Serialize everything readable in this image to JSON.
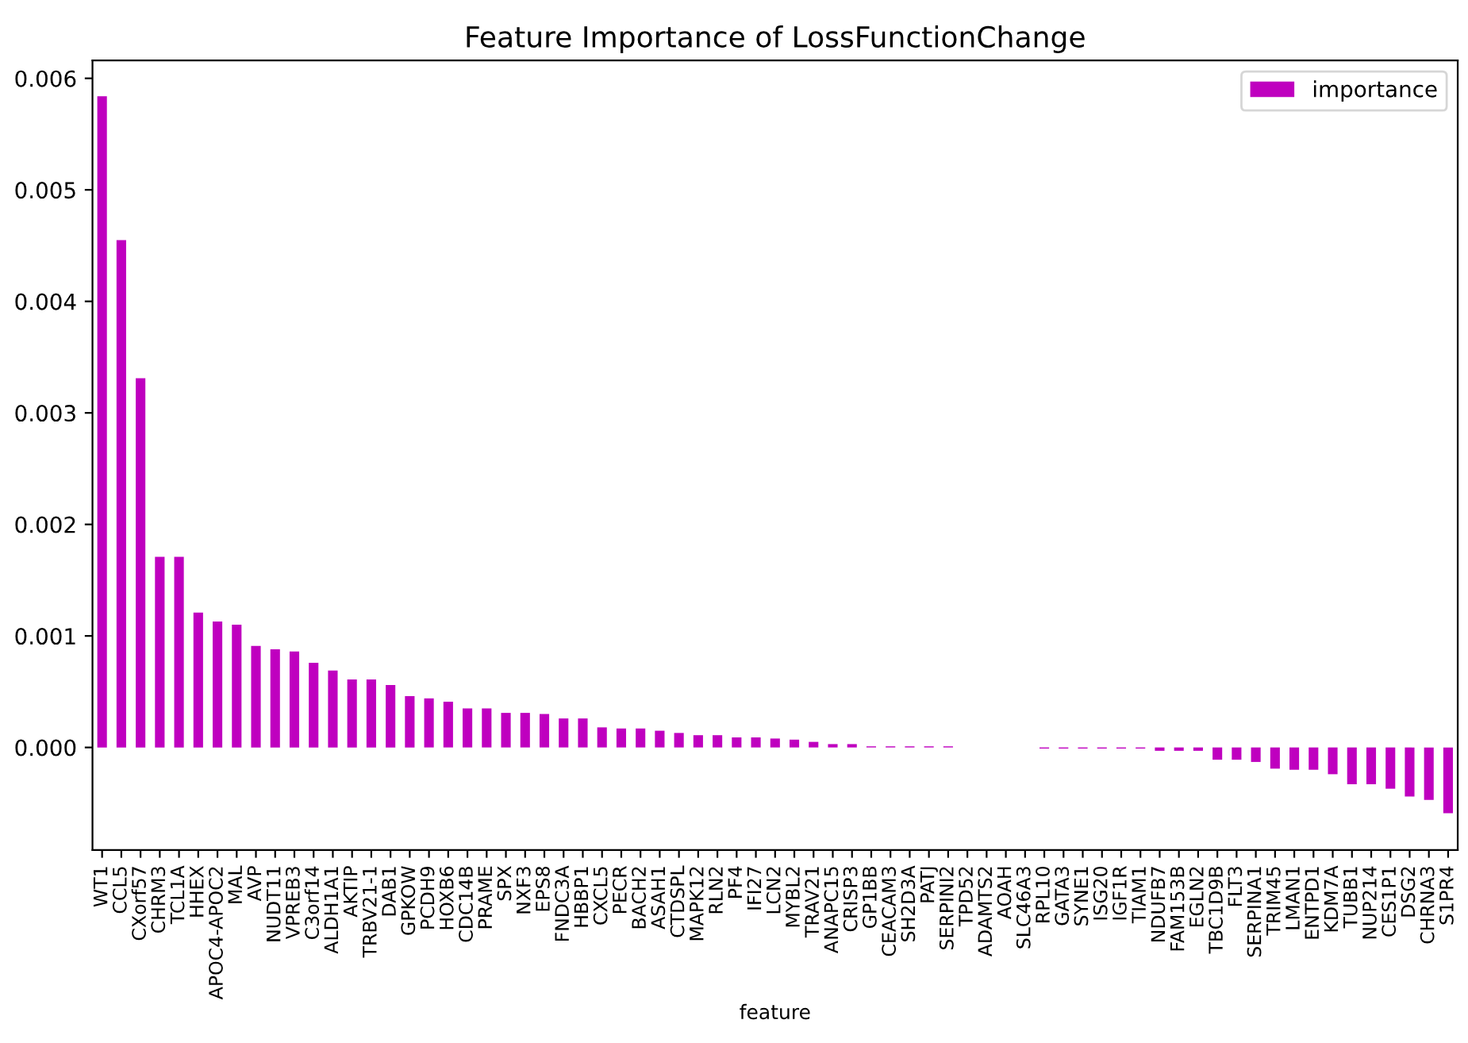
{
  "chart_data": {
    "type": "bar",
    "title": "Feature Importance of LossFunctionChange",
    "xlabel": "feature",
    "categories": [
      "WT1",
      "CCL5",
      "CXorf57",
      "CHRM3",
      "TCL1A",
      "HHEX",
      "APOC4-APOC2",
      "MAL",
      "AVP",
      "NUDT11",
      "VPREB3",
      "C3orf14",
      "ALDH1A1",
      "AKTIP",
      "TRBV21-1",
      "DAB1",
      "GPKOW",
      "PCDH9",
      "HOXB6",
      "CDC14B",
      "PRAME",
      "SPX",
      "NXF3",
      "EPS8",
      "FNDC3A",
      "HBBP1",
      "CXCL5",
      "PECR",
      "BACH2",
      "ASAH1",
      "CTDSPL",
      "MAPK12",
      "RLN2",
      "PF4",
      "IFI27",
      "LCN2",
      "MYBL2",
      "TRAV21",
      "ANAPC15",
      "CRISP3",
      "GP1BB",
      "CEACAM3",
      "SH2D3A",
      "PATJ",
      "SERPINI2",
      "TPD52",
      "ADAMTS2",
      "AOAH",
      "SLC46A3",
      "RPL10",
      "GATA3",
      "SYNE1",
      "ISG20",
      "IGF1R",
      "TIAM1",
      "NDUFB7",
      "FAM153B",
      "EGLN2",
      "TBC1D9B",
      "FLT3",
      "SERPINA1",
      "TRIM45",
      "LMAN1",
      "ENTPD1",
      "KDM7A",
      "TUBB1",
      "NUP214",
      "CES1P1",
      "DSG2",
      "CHRNA3",
      "S1PR4"
    ],
    "series": [
      {
        "name": "importance",
        "color": "#bf00bf",
        "values": [
          0.00584,
          0.00455,
          0.00331,
          0.00171,
          0.00171,
          0.00121,
          0.00113,
          0.0011,
          0.00091,
          0.00088,
          0.00086,
          0.00076,
          0.00069,
          0.00061,
          0.00061,
          0.00056,
          0.00046,
          0.00044,
          0.00041,
          0.00035,
          0.00035,
          0.00031,
          0.00031,
          0.0003,
          0.00026,
          0.00026,
          0.00018,
          0.00017,
          0.00017,
          0.00015,
          0.00013,
          0.00011,
          0.00011,
          9e-05,
          9e-05,
          8e-05,
          7e-05,
          5e-05,
          3e-05,
          3e-05,
          1e-05,
          1e-05,
          1e-05,
          1e-05,
          1e-05,
          0,
          0,
          0,
          0,
          -1e-05,
          -1e-05,
          -1e-05,
          -1e-05,
          -1e-05,
          -1e-05,
          -3e-05,
          -3e-05,
          -3e-05,
          -0.00011,
          -0.00011,
          -0.00013,
          -0.00019,
          -0.0002,
          -0.0002,
          -0.00024,
          -0.00033,
          -0.00033,
          -0.00037,
          -0.00044,
          -0.00047,
          -0.00059
        ]
      }
    ],
    "ylim": [
      -0.00092,
      0.00616
    ],
    "yticks": [
      {
        "value": 0,
        "label": "0.000"
      },
      {
        "value": 0.001,
        "label": "0.001"
      },
      {
        "value": 0.002,
        "label": "0.002"
      },
      {
        "value": 0.003,
        "label": "0.003"
      },
      {
        "value": 0.004,
        "label": "0.004"
      },
      {
        "value": 0.005,
        "label": "0.005"
      },
      {
        "value": 0.006,
        "label": "0.006"
      }
    ],
    "legend": "top right",
    "grid": false
  }
}
